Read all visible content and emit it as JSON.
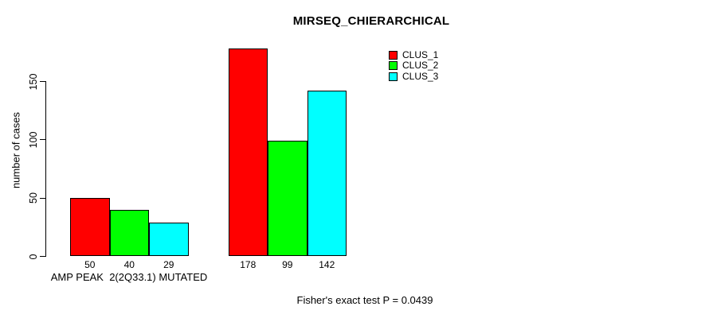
{
  "title": "MIRSEQ_CHIERARCHICAL",
  "y_axis_label": "number of cases",
  "group_label": "AMP PEAK  2(2Q33.1) MUTATED",
  "footer": "Fisher's exact test P = 0.0439",
  "colors": {
    "clus_1": "#ff0000",
    "clus_2": "#00ff00",
    "clus_3": "#00ffff",
    "axis": "#000000",
    "background": "#ffffff"
  },
  "chart_data": {
    "type": "bar",
    "title": "MIRSEQ_CHIERARCHICAL",
    "xlabel": "",
    "ylabel": "number of cases",
    "categories": [
      "AMP PEAK  2(2Q33.1) MUTATED",
      ""
    ],
    "series": [
      {
        "name": "CLUS_1",
        "color": "#ff0000",
        "values": [
          50,
          178
        ]
      },
      {
        "name": "CLUS_2",
        "color": "#00ff00",
        "values": [
          40,
          99
        ]
      },
      {
        "name": "CLUS_3",
        "color": "#00ffff",
        "values": [
          29,
          142
        ]
      }
    ],
    "bar_value_labels": [
      [
        50,
        40,
        29
      ],
      [
        178,
        99,
        142
      ]
    ],
    "yticks": [
      0,
      50,
      100,
      150
    ],
    "ylim": [
      0,
      180
    ],
    "grid": false,
    "legend_position": "top-right-inside",
    "legend_entries": [
      "CLUS_1",
      "CLUS_2",
      "CLUS_3"
    ],
    "annotation": "Fisher's exact test P = 0.0439"
  }
}
